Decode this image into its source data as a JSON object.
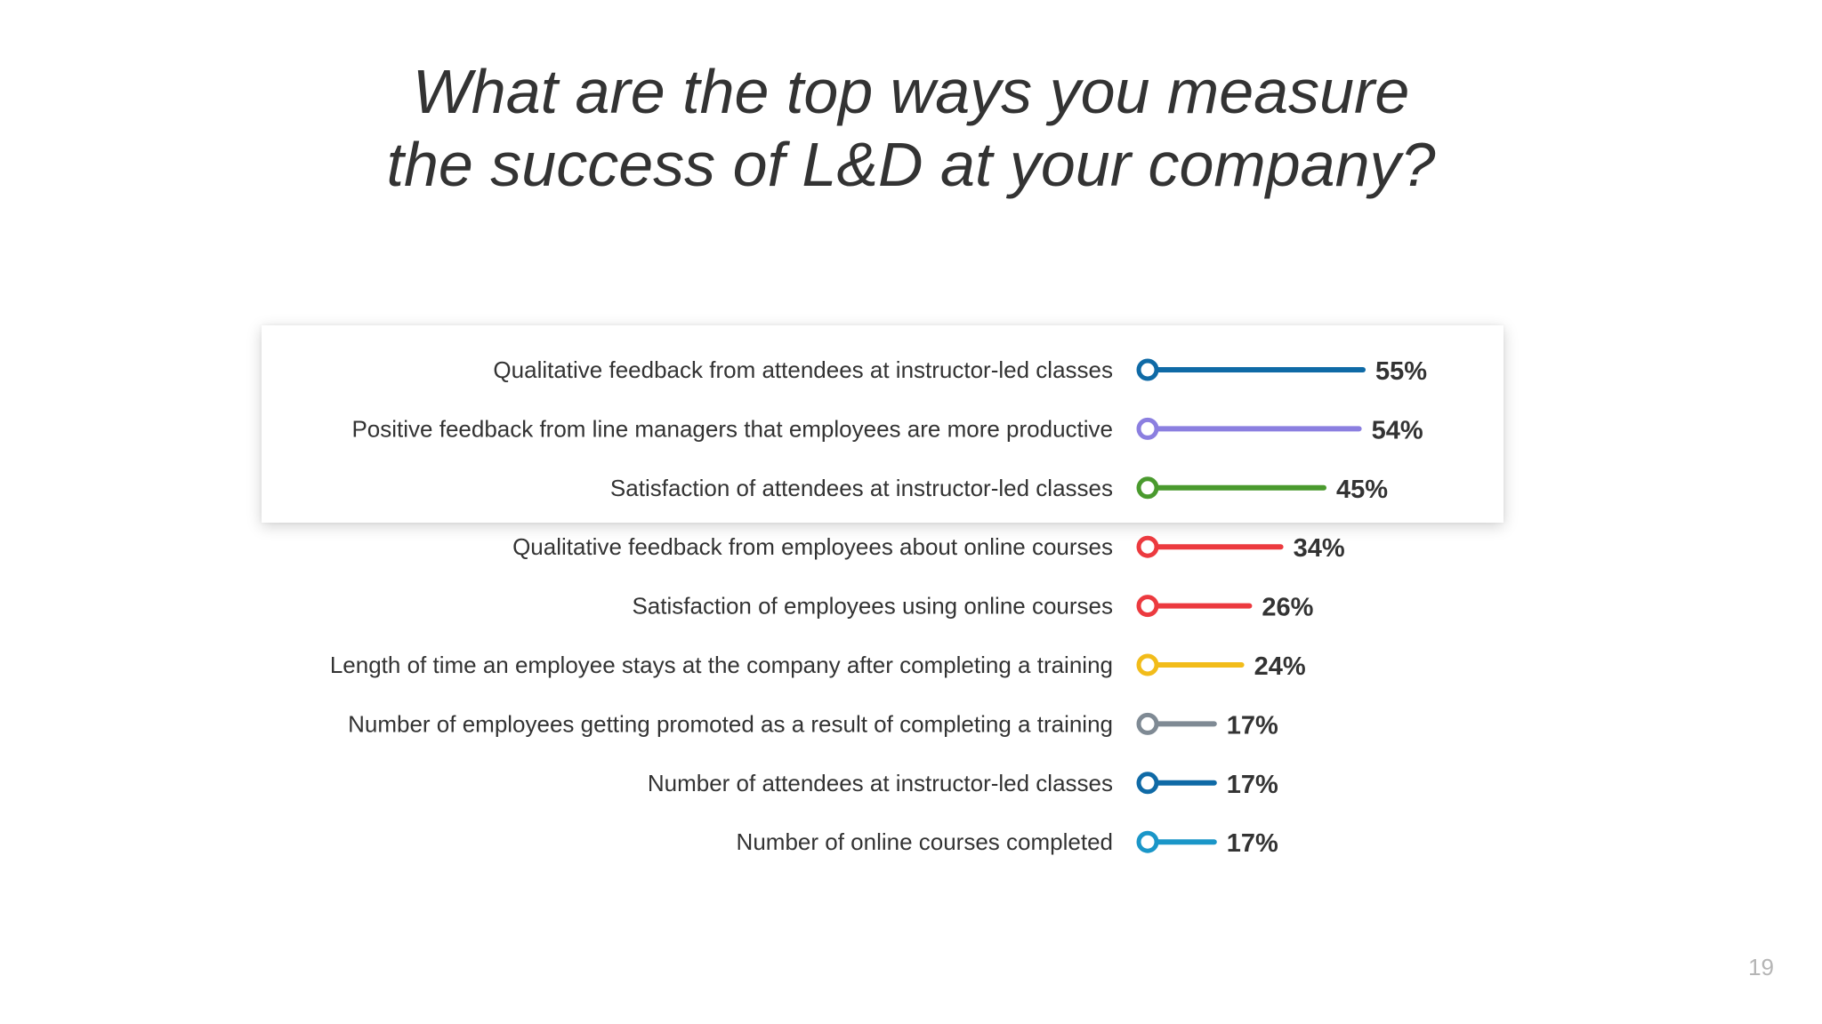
{
  "title": {
    "line1": "What are the top ways you measure",
    "line2": "the success of L&D at your company?"
  },
  "page_number": "19",
  "chart_data": {
    "type": "bar",
    "style": "lollipop",
    "title": "What are the top ways you measure the success of L&D at your company?",
    "value_suffix": "%",
    "highlighted_rows": 3,
    "categories": [
      "Qualitative feedback from attendees at instructor-led classes",
      "Positive feedback from line managers that employees are more productive",
      "Satisfaction of attendees at instructor-led classes",
      "Qualitative feedback from employees about online courses",
      "Satisfaction of employees using online courses",
      "Length of time an employee stays at the company after completing a training",
      "Number of employees getting promoted as a result of completing a training",
      "Number of attendees at instructor-led classes",
      "Number of online courses completed"
    ],
    "values": [
      55,
      54,
      45,
      34,
      26,
      24,
      17,
      17,
      17
    ],
    "value_labels": [
      "55%",
      "54%",
      "45%",
      "34%",
      "26%",
      "24%",
      "17%",
      "17%",
      "17%"
    ],
    "colors": [
      "#0f6aa6",
      "#8b7fe0",
      "#4a9a2e",
      "#ec3a3f",
      "#ec3a3f",
      "#f2bc1a",
      "#7f8a94",
      "#0f6aa6",
      "#1a96c8"
    ]
  }
}
